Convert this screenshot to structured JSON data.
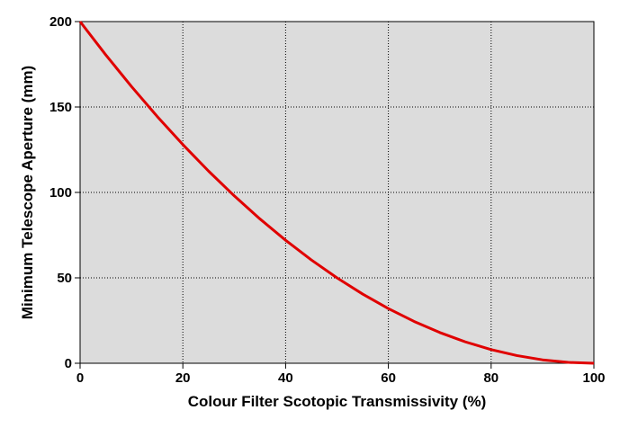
{
  "chart_data": {
    "type": "line",
    "x_label": "Colour Filter Scotopic Transmissivity (%)",
    "y_label": "Minimum Telescope Aperture (mm)",
    "x": [
      0,
      5,
      10,
      15,
      20,
      25,
      30,
      35,
      40,
      45,
      50,
      55,
      60,
      65,
      70,
      75,
      80,
      85,
      90,
      95,
      100
    ],
    "series": [
      {
        "color": "#e00000",
        "values": [
          200,
          180.5,
          162,
          144.5,
          128,
          112.5,
          98,
          84.5,
          72,
          60.5,
          50,
          40.5,
          32,
          24.5,
          18,
          12.5,
          8,
          4.5,
          2,
          0.5,
          0
        ]
      }
    ],
    "xlim": [
      0,
      100
    ],
    "xticks": [
      0,
      20,
      40,
      60,
      80,
      100
    ],
    "ylim": [
      0,
      200
    ],
    "yticks": [
      0,
      50,
      100,
      150,
      200
    ],
    "grid": true,
    "background": "#dcdcdc"
  }
}
